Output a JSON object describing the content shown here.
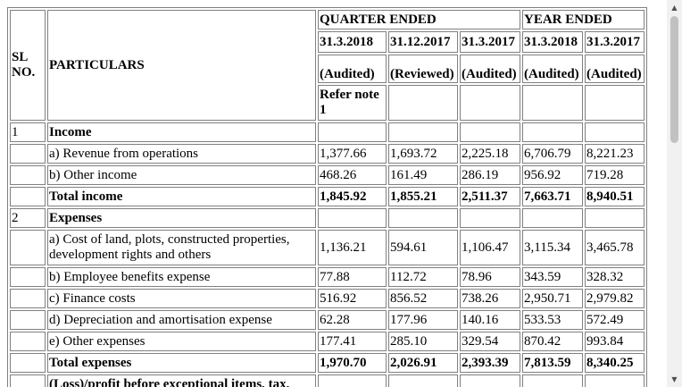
{
  "header": {
    "sl_no": "SL NO.",
    "particulars": "PARTICULARS",
    "quarter_ended": "QUARTER ENDED",
    "year_ended": "YEAR ENDED",
    "dates": [
      "31.3.2018",
      "31.12.2017",
      "31.3.2017",
      "31.3.2018",
      "31.3.2017"
    ],
    "statuses": [
      "(Audited)",
      "(Reviewed)",
      "(Audited)",
      "(Audited)",
      "(Audited)"
    ],
    "refer_note": "Refer note 1"
  },
  "rows": [
    {
      "sl": "1",
      "label": "Income",
      "bold": true,
      "values": [
        "",
        "",
        "",
        "",
        ""
      ]
    },
    {
      "sl": "",
      "label": "a) Revenue from operations",
      "bold": false,
      "values": [
        "1,377.66",
        "1,693.72",
        "2,225.18",
        "6,706.79",
        "8,221.23"
      ]
    },
    {
      "sl": "",
      "label": "b) Other income",
      "bold": false,
      "values": [
        "468.26",
        "161.49",
        "286.19",
        "956.92",
        "719.28"
      ]
    },
    {
      "sl": "",
      "label": "Total income",
      "bold": true,
      "values": [
        "1,845.92",
        "1,855.21",
        "2,511.37",
        "7,663.71",
        "8,940.51"
      ]
    },
    {
      "sl": "2",
      "label": "Expenses",
      "bold": true,
      "values": [
        "",
        "",
        "",
        "",
        ""
      ]
    },
    {
      "sl": "",
      "label": "a) Cost of land, plots, constructed properties, development rights and others",
      "bold": false,
      "tall": true,
      "values": [
        "1,136.21",
        "594.61",
        "1,106.47",
        "3,115.34",
        "3,465.78"
      ]
    },
    {
      "sl": "",
      "label": "b) Employee benefits expense",
      "bold": false,
      "values": [
        "77.88",
        "112.72",
        "78.96",
        "343.59",
        "328.32"
      ]
    },
    {
      "sl": "",
      "label": "c) Finance costs",
      "bold": false,
      "values": [
        "516.92",
        "856.52",
        "738.26",
        "2,950.71",
        "2,979.82"
      ]
    },
    {
      "sl": "",
      "label": "d) Depreciation and amortisation expense",
      "bold": false,
      "values": [
        "62.28",
        "177.96",
        "140.16",
        "533.53",
        "572.49"
      ]
    },
    {
      "sl": "",
      "label": "e) Other expenses",
      "bold": false,
      "values": [
        "177.41",
        "285.10",
        "329.54",
        "870.42",
        "993.84"
      ]
    },
    {
      "sl": "",
      "label": "Total expenses",
      "bold": true,
      "values": [
        "1,970.70",
        "2,026.91",
        "2,393.39",
        "7,813.59",
        "8,340.25"
      ]
    },
    {
      "sl": "",
      "label": "(Loss)/profit before exceptional items, tax,",
      "bold": true,
      "cut": true,
      "values": [
        "",
        "",
        "",
        "",
        ""
      ]
    }
  ],
  "scrollbar": {
    "up_icon": "▲",
    "down_icon": "▼"
  }
}
